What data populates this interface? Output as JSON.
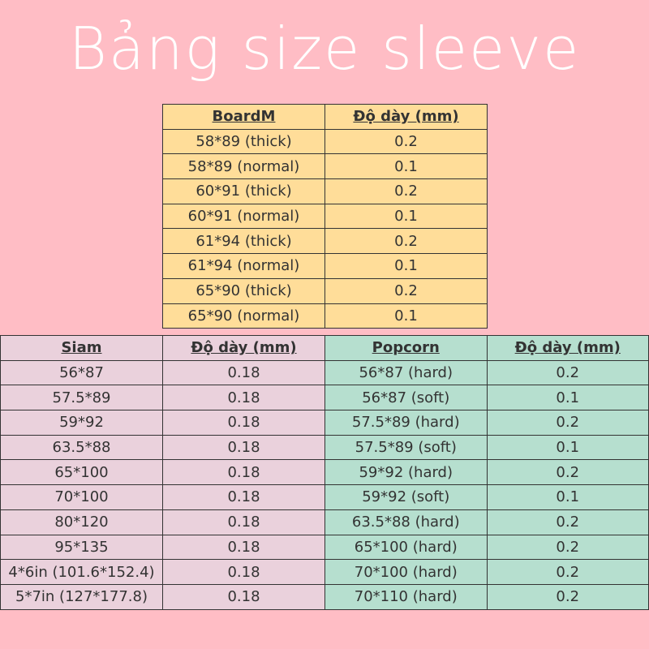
{
  "title": "Bảng size sleeve",
  "boardm": {
    "header": [
      "BoardM",
      "Độ dày (mm)"
    ],
    "rows": [
      [
        "58*89 (thick)",
        "0.2"
      ],
      [
        "58*89 (normal)",
        "0.1"
      ],
      [
        "60*91 (thick)",
        "0.2"
      ],
      [
        "60*91 (normal)",
        "0.1"
      ],
      [
        "61*94 (thick)",
        "0.2"
      ],
      [
        "61*94 (normal)",
        "0.1"
      ],
      [
        "65*90 (thick)",
        "0.2"
      ],
      [
        "65*90 (normal)",
        "0.1"
      ]
    ]
  },
  "siam": {
    "header": [
      "Siam",
      "Độ dày (mm)"
    ],
    "rows": [
      [
        "56*87",
        "0.18"
      ],
      [
        "57.5*89",
        "0.18"
      ],
      [
        "59*92",
        "0.18"
      ],
      [
        "63.5*88",
        "0.18"
      ],
      [
        "65*100",
        "0.18"
      ],
      [
        "70*100",
        "0.18"
      ],
      [
        "80*120",
        "0.18"
      ],
      [
        "95*135",
        "0.18"
      ],
      [
        "4*6in (101.6*152.4)",
        "0.18"
      ],
      [
        "5*7in (127*177.8)",
        "0.18"
      ]
    ]
  },
  "popcorn": {
    "header": [
      "Popcorn",
      "Độ dày (mm)"
    ],
    "rows": [
      [
        "56*87 (hard)",
        "0.2"
      ],
      [
        "56*87 (soft)",
        "0.1"
      ],
      [
        "57.5*89 (hard)",
        "0.2"
      ],
      [
        "57.5*89 (soft)",
        "0.1"
      ],
      [
        "59*92 (hard)",
        "0.2"
      ],
      [
        "59*92 (soft)",
        "0.1"
      ],
      [
        "63.5*88 (hard)",
        "0.2"
      ],
      [
        "65*100 (hard)",
        "0.2"
      ],
      [
        "70*100 (hard)",
        "0.2"
      ],
      [
        "70*110 (hard)",
        "0.2"
      ]
    ]
  }
}
